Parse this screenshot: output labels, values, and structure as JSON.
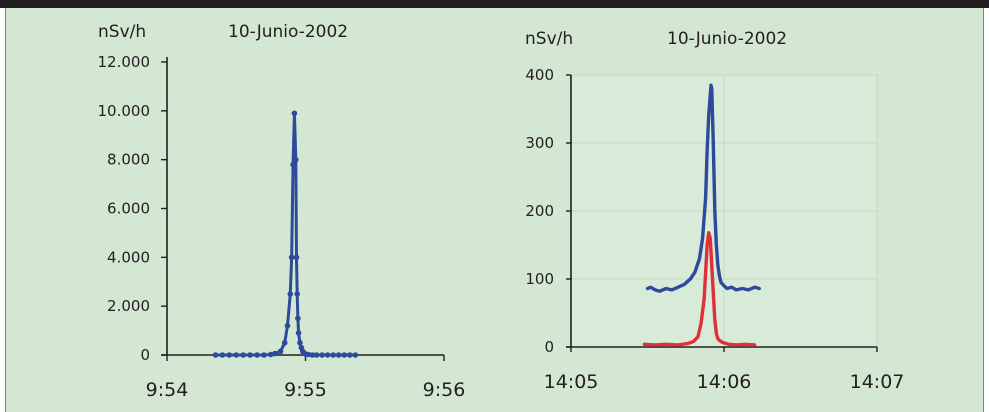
{
  "chart_data": [
    {
      "type": "line",
      "unit_label": "nSv/h",
      "date_label": "10-Junio-2002",
      "x_ticks": [
        "9:54",
        "9:55",
        "9:56"
      ],
      "y_ticks": [
        "0",
        "2.000",
        "4.000",
        "6.000",
        "8.000",
        "10.000",
        "12.000"
      ],
      "xlim": [
        "9:54",
        "9:56"
      ],
      "ylim": [
        0,
        12000
      ],
      "grid": false,
      "series": [
        {
          "color": "#2e4a9c",
          "markers": true,
          "x": [
            0.35,
            0.4,
            0.45,
            0.5,
            0.55,
            0.6,
            0.65,
            0.7,
            0.75,
            0.78,
            0.82,
            0.85,
            0.87,
            0.89,
            0.9,
            0.91,
            0.92,
            0.93,
            0.935,
            0.94,
            0.945,
            0.95,
            0.96,
            0.97,
            0.98,
            0.99,
            1.0,
            1.02,
            1.05,
            1.08,
            1.12,
            1.16,
            1.2,
            1.24,
            1.28,
            1.32,
            1.36
          ],
          "y": [
            0,
            0,
            0,
            0,
            0,
            0,
            0,
            0,
            20,
            60,
            150,
            500,
            1200,
            2500,
            4000,
            7800,
            9900,
            8000,
            4000,
            2500,
            1500,
            900,
            500,
            300,
            150,
            80,
            40,
            20,
            0,
            0,
            0,
            0,
            0,
            0,
            0,
            0,
            0
          ]
        }
      ]
    },
    {
      "type": "line",
      "unit_label": "nSv/h",
      "date_label": "10-Junio-2002",
      "x_ticks": [
        "14:05",
        "14:06",
        "14:07"
      ],
      "y_ticks": [
        "0",
        "100",
        "200",
        "300",
        "400"
      ],
      "xlim": [
        "14:05",
        "14:07"
      ],
      "ylim": [
        0,
        400
      ],
      "grid": true,
      "series": [
        {
          "color": "#2e4a9c",
          "markers": false,
          "x": [
            0.5,
            0.52,
            0.55,
            0.58,
            0.62,
            0.66,
            0.7,
            0.74,
            0.78,
            0.81,
            0.84,
            0.86,
            0.88,
            0.89,
            0.9,
            0.91,
            0.915,
            0.92,
            0.93,
            0.94,
            0.95,
            0.96,
            0.97,
            0.98,
            1.0,
            1.02,
            1.05,
            1.08,
            1.12,
            1.16,
            1.2,
            1.23
          ],
          "y": [
            86,
            88,
            84,
            82,
            86,
            84,
            88,
            92,
            100,
            110,
            130,
            160,
            220,
            290,
            340,
            370,
            385,
            380,
            300,
            200,
            150,
            120,
            105,
            95,
            90,
            86,
            88,
            84,
            86,
            84,
            88,
            86
          ]
        },
        {
          "color": "#e0303a",
          "markers": false,
          "x": [
            0.48,
            0.55,
            0.62,
            0.7,
            0.76,
            0.8,
            0.83,
            0.85,
            0.87,
            0.88,
            0.89,
            0.9,
            0.91,
            0.92,
            0.93,
            0.94,
            0.95,
            0.96,
            0.98,
            1.0,
            1.03,
            1.08,
            1.14,
            1.2
          ],
          "y": [
            4,
            3,
            4,
            3,
            5,
            8,
            15,
            35,
            70,
            110,
            150,
            168,
            160,
            120,
            80,
            40,
            20,
            12,
            8,
            6,
            4,
            3,
            4,
            3
          ]
        }
      ]
    }
  ]
}
